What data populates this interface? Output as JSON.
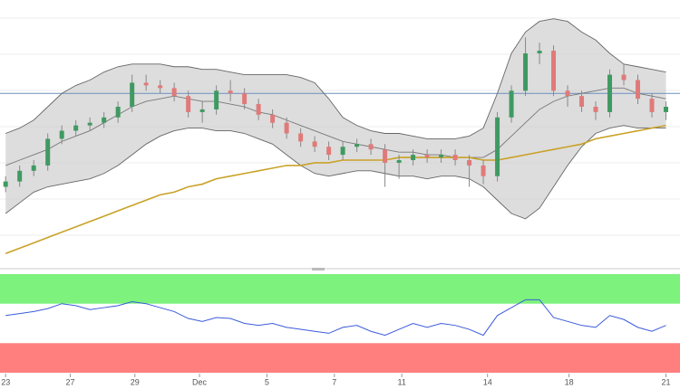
{
  "chart_data": [
    {
      "type": "candlestick",
      "x": [
        0,
        1,
        2,
        3,
        4,
        5,
        6,
        7,
        8,
        9,
        10,
        11,
        12,
        13,
        14,
        15,
        16,
        17,
        18,
        19,
        20,
        21,
        22,
        23,
        24,
        25,
        26,
        27,
        28,
        29,
        30,
        31,
        32,
        33,
        34,
        35,
        36,
        37,
        38,
        39,
        40,
        41,
        42,
        43,
        44,
        45,
        46,
        47
      ],
      "open": [
        30,
        32,
        36,
        38,
        48,
        51,
        53,
        54,
        56,
        60,
        69,
        68,
        67,
        64,
        58,
        59,
        66,
        65,
        61,
        57,
        54,
        50,
        47,
        45,
        42,
        45,
        46,
        44,
        39,
        40,
        42,
        41,
        42,
        40,
        38,
        34,
        56,
        66,
        80,
        81,
        66,
        64,
        60,
        58,
        72,
        70,
        63,
        58
      ],
      "high": [
        34,
        38,
        40,
        50,
        53,
        55,
        56,
        58,
        62,
        72,
        72,
        70,
        69,
        66,
        62,
        68,
        70,
        67,
        63,
        59,
        56,
        52,
        49,
        47,
        47,
        48,
        48,
        46,
        42,
        44,
        44,
        44,
        44,
        42,
        40,
        58,
        68,
        86,
        84,
        83,
        68,
        66,
        62,
        74,
        76,
        72,
        65,
        62
      ],
      "low": [
        28,
        30,
        34,
        36,
        46,
        49,
        51,
        52,
        54,
        58,
        66,
        65,
        62,
        56,
        54,
        57,
        62,
        59,
        55,
        52,
        48,
        45,
        43,
        40,
        40,
        43,
        42,
        30,
        33,
        38,
        39,
        39,
        38,
        30,
        31,
        32,
        54,
        64,
        76,
        64,
        60,
        58,
        55,
        56,
        68,
        61,
        56,
        55
      ],
      "close": [
        32,
        36,
        38,
        48,
        51,
        53,
        54,
        56,
        60,
        69,
        68,
        67,
        64,
        58,
        59,
        66,
        65,
        61,
        57,
        54,
        50,
        47,
        45,
        42,
        45,
        46,
        44,
        39,
        40,
        42,
        41,
        42,
        40,
        38,
        34,
        56,
        66,
        80,
        81,
        66,
        64,
        60,
        58,
        72,
        70,
        63,
        58,
        60
      ],
      "up_color": "#3f9a62",
      "down_color": "#e07a7a",
      "series": [
        {
          "color": "#666666",
          "values": [
            50,
            52,
            55,
            60,
            65,
            68,
            70,
            73,
            75,
            76,
            76,
            76,
            75,
            75,
            74,
            74,
            73,
            72,
            72,
            72,
            72,
            71,
            69,
            63,
            56,
            53,
            51,
            50,
            50,
            49,
            48,
            48,
            48,
            49,
            52,
            65,
            80,
            88,
            92,
            93,
            92,
            88,
            85,
            80,
            76,
            75,
            74,
            73
          ]
        },
        {
          "color": "#777777",
          "values": [
            38,
            40,
            42,
            44,
            47,
            49,
            51,
            54,
            57,
            60,
            62,
            63,
            64,
            63,
            62,
            62,
            61,
            60,
            58,
            57,
            55,
            53,
            51,
            49,
            47,
            46,
            45,
            44,
            43,
            43,
            42,
            42,
            41,
            41,
            41,
            44,
            49,
            54,
            59,
            62,
            64,
            65,
            66,
            67,
            67,
            65,
            64,
            63
          ]
        },
        {
          "color": "#666666",
          "values": [
            20,
            24,
            28,
            30,
            31,
            32,
            33,
            35,
            38,
            42,
            46,
            49,
            51,
            52,
            52,
            51,
            51,
            50,
            48,
            46,
            42,
            38,
            35,
            34,
            35,
            36,
            36,
            35,
            34,
            34,
            33,
            34,
            34,
            33,
            30,
            25,
            20,
            18,
            22,
            30,
            38,
            45,
            50,
            52,
            53,
            52,
            52,
            52
          ]
        },
        {
          "color": "#c9a227",
          "values": [
            5,
            7,
            9,
            11,
            13,
            15,
            17,
            19,
            21,
            23,
            25,
            27,
            28,
            30,
            31,
            33,
            34,
            35,
            36,
            37,
            38,
            38,
            39,
            39,
            40,
            40,
            40,
            40,
            41,
            41,
            41,
            41,
            41,
            41,
            40,
            40,
            41,
            42,
            43,
            44,
            45,
            46,
            48,
            49,
            50,
            51,
            52,
            53
          ]
        }
      ],
      "hline": 65,
      "hline_color": "#6b8fbf",
      "xlim": [
        -0.4,
        48
      ],
      "ylim": [
        0,
        100
      ],
      "xticks": [
        {
          "value": 0,
          "label": "23"
        },
        {
          "value": 4.6,
          "label": "27"
        },
        {
          "value": 9.2,
          "label": "29"
        },
        {
          "value": 13.8,
          "label": "Dec"
        },
        {
          "value": 18.6,
          "label": "5"
        },
        {
          "value": 23.4,
          "label": "7"
        },
        {
          "value": 28.2,
          "label": "11"
        },
        {
          "value": 34.3,
          "label": "14"
        },
        {
          "value": 40.1,
          "label": "18"
        },
        {
          "value": 47,
          "label": "21"
        }
      ]
    },
    {
      "type": "line",
      "x": [
        0,
        1,
        2,
        3,
        4,
        5,
        6,
        7,
        8,
        9,
        10,
        11,
        12,
        13,
        14,
        15,
        16,
        17,
        18,
        19,
        20,
        21,
        22,
        23,
        24,
        25,
        26,
        27,
        28,
        29,
        30,
        31,
        32,
        33,
        34,
        35,
        36,
        37,
        38,
        39,
        40,
        41,
        42,
        43,
        44,
        45,
        46,
        47
      ],
      "series": [
        {
          "color": "#3b5bdb",
          "values": [
            58,
            60,
            62,
            65,
            70,
            68,
            64,
            66,
            68,
            72,
            70,
            66,
            62,
            55,
            52,
            56,
            55,
            50,
            48,
            50,
            46,
            44,
            42,
            40,
            46,
            48,
            42,
            38,
            44,
            50,
            46,
            50,
            48,
            44,
            38,
            58,
            66,
            74,
            74,
            56,
            52,
            48,
            46,
            58,
            54,
            46,
            42,
            48
          ]
        }
      ],
      "zones": [
        {
          "range": [
            70,
            100
          ],
          "color": "#7df27d"
        },
        {
          "range": [
            0,
            30
          ],
          "color": "#ff7f7f"
        }
      ],
      "xlim": [
        -0.4,
        48
      ],
      "ylim": [
        0,
        100
      ]
    }
  ]
}
